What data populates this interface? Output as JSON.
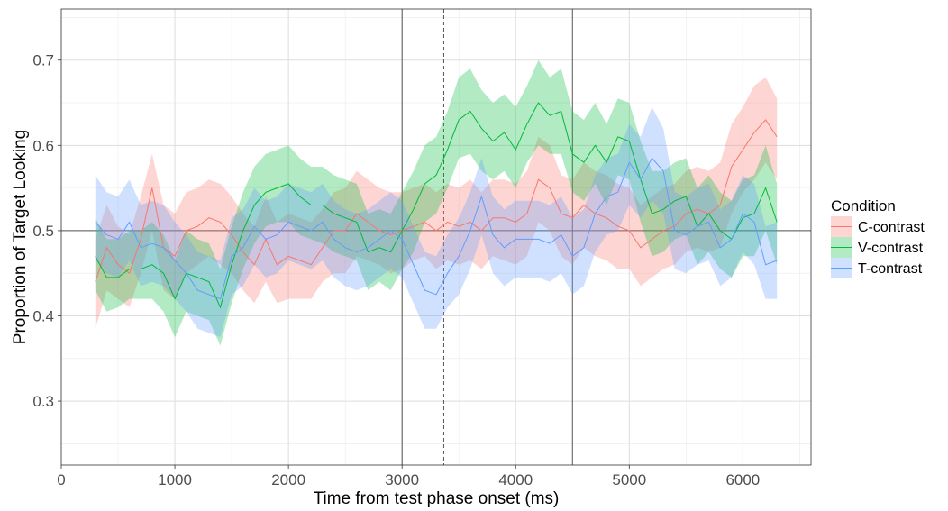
{
  "chart_data": {
    "type": "line",
    "xlabel": "Time from test phase onset (ms)",
    "ylabel": "Proportion of Target Looking",
    "xlim": [
      0,
      6600
    ],
    "ylim": [
      0.225,
      0.76
    ],
    "x_ticks": [
      0,
      1000,
      2000,
      3000,
      4000,
      5000,
      6000
    ],
    "x_tick_labels": [
      "0",
      "1000",
      "2000",
      "3000",
      "4000",
      "5000",
      "6000"
    ],
    "y_ticks": [
      0.3,
      0.4,
      0.5,
      0.6,
      0.7
    ],
    "y_tick_labels": [
      "0.3",
      "0.4",
      "0.5",
      "0.6",
      "0.7"
    ],
    "grid": true,
    "reference_lines": {
      "horizontal": [
        0.5
      ],
      "vertical_solid": [
        3000,
        4500
      ],
      "vertical_dashed": [
        3367
      ]
    },
    "legend": {
      "title": "Condition",
      "position": "right"
    },
    "x": [
      300,
      400,
      500,
      600,
      700,
      800,
      900,
      1000,
      1100,
      1200,
      1300,
      1400,
      1500,
      1600,
      1700,
      1800,
      1900,
      2000,
      2100,
      2200,
      2300,
      2400,
      2500,
      2600,
      2700,
      2800,
      2900,
      3000,
      3100,
      3200,
      3300,
      3400,
      3500,
      3600,
      3700,
      3800,
      3900,
      4000,
      4100,
      4200,
      4300,
      4400,
      4500,
      4600,
      4700,
      4800,
      4900,
      5000,
      5100,
      5200,
      5300,
      5400,
      5500,
      5600,
      5700,
      5800,
      5900,
      6000,
      6100,
      6200,
      6300
    ],
    "series": [
      {
        "name": "C-contrast",
        "color": "#F8766D",
        "mean": [
          0.44,
          0.48,
          0.46,
          0.45,
          0.49,
          0.55,
          0.48,
          0.47,
          0.5,
          0.505,
          0.515,
          0.51,
          0.495,
          0.475,
          0.46,
          0.49,
          0.46,
          0.47,
          0.465,
          0.46,
          0.48,
          0.5,
          0.5,
          0.52,
          0.51,
          0.5,
          0.495,
          0.5,
          0.505,
          0.51,
          0.5,
          0.51,
          0.505,
          0.51,
          0.5,
          0.515,
          0.515,
          0.51,
          0.52,
          0.56,
          0.55,
          0.52,
          0.515,
          0.53,
          0.52,
          0.515,
          0.505,
          0.5,
          0.48,
          0.49,
          0.5,
          0.505,
          0.52,
          0.525,
          0.52,
          0.53,
          0.575,
          0.595,
          0.615,
          0.63,
          0.61
        ],
        "lower": [
          0.385,
          0.43,
          0.42,
          0.41,
          0.45,
          0.5,
          0.43,
          0.42,
          0.45,
          0.46,
          0.47,
          0.46,
          0.45,
          0.43,
          0.415,
          0.44,
          0.415,
          0.42,
          0.42,
          0.42,
          0.44,
          0.45,
          0.45,
          0.47,
          0.465,
          0.46,
          0.45,
          0.455,
          0.465,
          0.47,
          0.455,
          0.465,
          0.46,
          0.465,
          0.455,
          0.47,
          0.465,
          0.46,
          0.47,
          0.51,
          0.5,
          0.47,
          0.46,
          0.48,
          0.47,
          0.465,
          0.455,
          0.455,
          0.435,
          0.445,
          0.455,
          0.46,
          0.475,
          0.48,
          0.475,
          0.48,
          0.52,
          0.545,
          0.56,
          0.58,
          0.56
        ],
        "upper": [
          0.49,
          0.53,
          0.505,
          0.495,
          0.54,
          0.59,
          0.53,
          0.52,
          0.545,
          0.55,
          0.56,
          0.555,
          0.54,
          0.52,
          0.505,
          0.54,
          0.51,
          0.52,
          0.515,
          0.51,
          0.525,
          0.545,
          0.55,
          0.57,
          0.56,
          0.55,
          0.545,
          0.545,
          0.55,
          0.555,
          0.545,
          0.555,
          0.55,
          0.56,
          0.545,
          0.56,
          0.56,
          0.555,
          0.57,
          0.61,
          0.6,
          0.565,
          0.56,
          0.58,
          0.57,
          0.565,
          0.555,
          0.55,
          0.53,
          0.54,
          0.55,
          0.555,
          0.57,
          0.575,
          0.57,
          0.58,
          0.625,
          0.645,
          0.67,
          0.68,
          0.655
        ]
      },
      {
        "name": "V-contrast",
        "color": "#00BA38",
        "mean": [
          0.47,
          0.445,
          0.445,
          0.455,
          0.455,
          0.46,
          0.45,
          0.42,
          0.45,
          0.445,
          0.44,
          0.41,
          0.46,
          0.5,
          0.53,
          0.545,
          0.55,
          0.555,
          0.54,
          0.53,
          0.53,
          0.52,
          0.515,
          0.51,
          0.475,
          0.48,
          0.475,
          0.5,
          0.525,
          0.555,
          0.565,
          0.595,
          0.63,
          0.64,
          0.62,
          0.605,
          0.615,
          0.595,
          0.625,
          0.65,
          0.635,
          0.64,
          0.59,
          0.58,
          0.6,
          0.58,
          0.61,
          0.605,
          0.56,
          0.52,
          0.525,
          0.535,
          0.54,
          0.505,
          0.52,
          0.5,
          0.49,
          0.515,
          0.52,
          0.55,
          0.51
        ],
        "lower": [
          0.43,
          0.405,
          0.41,
          0.42,
          0.42,
          0.42,
          0.405,
          0.375,
          0.405,
          0.4,
          0.395,
          0.365,
          0.415,
          0.455,
          0.485,
          0.505,
          0.51,
          0.51,
          0.495,
          0.49,
          0.485,
          0.475,
          0.47,
          0.465,
          0.43,
          0.44,
          0.43,
          0.455,
          0.475,
          0.51,
          0.52,
          0.55,
          0.585,
          0.59,
          0.57,
          0.56,
          0.57,
          0.55,
          0.58,
          0.6,
          0.59,
          0.59,
          0.545,
          0.535,
          0.555,
          0.53,
          0.565,
          0.56,
          0.51,
          0.47,
          0.475,
          0.49,
          0.495,
          0.46,
          0.475,
          0.455,
          0.445,
          0.47,
          0.47,
          0.5,
          0.46
        ],
        "upper": [
          0.515,
          0.49,
          0.49,
          0.5,
          0.5,
          0.51,
          0.495,
          0.465,
          0.5,
          0.49,
          0.485,
          0.455,
          0.505,
          0.545,
          0.575,
          0.59,
          0.595,
          0.6,
          0.585,
          0.575,
          0.575,
          0.565,
          0.56,
          0.555,
          0.52,
          0.525,
          0.52,
          0.545,
          0.57,
          0.6,
          0.61,
          0.64,
          0.68,
          0.69,
          0.665,
          0.65,
          0.66,
          0.645,
          0.67,
          0.7,
          0.68,
          0.69,
          0.64,
          0.63,
          0.65,
          0.625,
          0.655,
          0.65,
          0.605,
          0.57,
          0.57,
          0.58,
          0.585,
          0.55,
          0.565,
          0.545,
          0.535,
          0.56,
          0.565,
          0.6,
          0.555
        ]
      },
      {
        "name": "T-contrast",
        "color": "#619CFF",
        "mean": [
          0.51,
          0.495,
          0.49,
          0.51,
          0.48,
          0.485,
          0.48,
          0.465,
          0.45,
          0.43,
          0.425,
          0.42,
          0.47,
          0.48,
          0.505,
          0.49,
          0.495,
          0.51,
          0.505,
          0.5,
          0.51,
          0.49,
          0.48,
          0.475,
          0.48,
          0.49,
          0.5,
          0.49,
          0.46,
          0.43,
          0.425,
          0.45,
          0.47,
          0.5,
          0.54,
          0.495,
          0.48,
          0.49,
          0.49,
          0.49,
          0.485,
          0.495,
          0.47,
          0.48,
          0.52,
          0.54,
          0.545,
          0.58,
          0.56,
          0.585,
          0.57,
          0.5,
          0.495,
          0.505,
          0.51,
          0.48,
          0.49,
          0.52,
          0.51,
          0.46,
          0.465
        ],
        "lower": [
          0.465,
          0.45,
          0.445,
          0.465,
          0.435,
          0.44,
          0.435,
          0.42,
          0.405,
          0.385,
          0.38,
          0.375,
          0.425,
          0.435,
          0.46,
          0.445,
          0.45,
          0.465,
          0.46,
          0.455,
          0.465,
          0.445,
          0.435,
          0.43,
          0.435,
          0.445,
          0.455,
          0.445,
          0.415,
          0.385,
          0.385,
          0.41,
          0.425,
          0.455,
          0.495,
          0.45,
          0.435,
          0.445,
          0.445,
          0.445,
          0.44,
          0.45,
          0.425,
          0.435,
          0.475,
          0.495,
          0.5,
          0.53,
          0.515,
          0.535,
          0.52,
          0.455,
          0.45,
          0.46,
          0.465,
          0.435,
          0.445,
          0.475,
          0.46,
          0.42,
          0.42
        ],
        "upper": [
          0.565,
          0.545,
          0.54,
          0.56,
          0.53,
          0.535,
          0.53,
          0.51,
          0.495,
          0.475,
          0.47,
          0.465,
          0.515,
          0.525,
          0.55,
          0.535,
          0.54,
          0.555,
          0.55,
          0.545,
          0.555,
          0.535,
          0.525,
          0.52,
          0.525,
          0.535,
          0.545,
          0.535,
          0.505,
          0.475,
          0.47,
          0.495,
          0.515,
          0.545,
          0.585,
          0.54,
          0.525,
          0.535,
          0.535,
          0.535,
          0.53,
          0.54,
          0.515,
          0.525,
          0.565,
          0.585,
          0.59,
          0.625,
          0.61,
          0.645,
          0.62,
          0.545,
          0.54,
          0.55,
          0.555,
          0.525,
          0.535,
          0.565,
          0.555,
          0.505,
          0.51
        ]
      }
    ]
  }
}
